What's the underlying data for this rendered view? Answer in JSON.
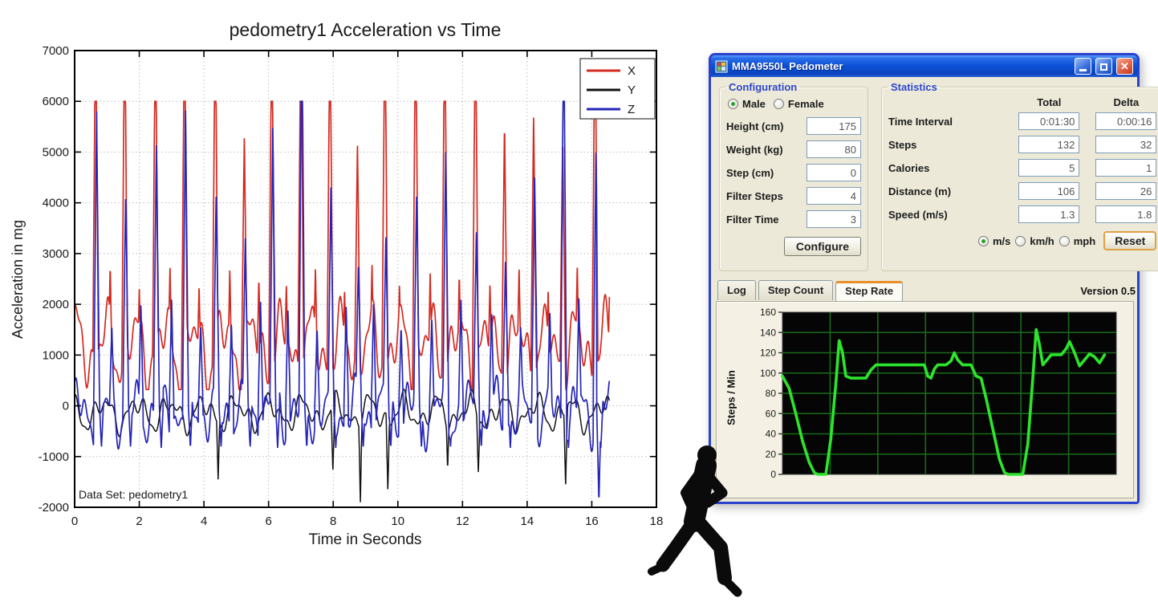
{
  "window": {
    "title": "MMA9550L Pedometer",
    "controls": {
      "minimize": "minimize",
      "maximize": "maximize",
      "close": "close"
    },
    "configuration": {
      "title": "Configuration",
      "gender_options": [
        {
          "label": "Male",
          "selected": true
        },
        {
          "label": "Female",
          "selected": false
        }
      ],
      "rows": [
        {
          "label": "Height (cm)",
          "value": "175"
        },
        {
          "label": "Weight (kg)",
          "value": "80"
        },
        {
          "label": "Step (cm)",
          "value": "0"
        },
        {
          "label": "Filter Steps",
          "value": "4"
        },
        {
          "label": "Filter Time",
          "value": "3"
        }
      ],
      "configure_label": "Configure"
    },
    "statistics": {
      "title": "Statistics",
      "col_total": "Total",
      "col_delta": "Delta",
      "rows": [
        {
          "label": "Time Interval",
          "total": "0:01:30",
          "delta": "0:00:16"
        },
        {
          "label": "Steps",
          "total": "132",
          "delta": "32"
        },
        {
          "label": "Calories",
          "total": "5",
          "delta": "1"
        },
        {
          "label": "Distance (m)",
          "total": "106",
          "delta": "26"
        },
        {
          "label": "Speed (m/s)",
          "total": "1.3",
          "delta": "1.8"
        }
      ],
      "unit_options": [
        {
          "label": "m/s",
          "selected": true
        },
        {
          "label": "km/h",
          "selected": false
        },
        {
          "label": "mph",
          "selected": false
        }
      ],
      "reset_label": "Reset"
    },
    "tabs": [
      {
        "label": "Log",
        "active": false
      },
      {
        "label": "Step Count",
        "active": false
      },
      {
        "label": "Step Rate",
        "active": true
      }
    ],
    "version": "Version 0.5"
  },
  "chart_data": [
    {
      "id": "acceleration",
      "type": "line",
      "title": "pedometry1 Acceleration vs Time",
      "xlabel": "Time in Seconds",
      "ylabel": "Acceleration in mg",
      "annotation": "Data Set: pedometry1",
      "xlim": [
        0,
        18
      ],
      "ylim": [
        -2000,
        7000
      ],
      "xtick_step": 2,
      "ytick_step": 1000,
      "grid": "dotted",
      "legend": {
        "position": "top-right",
        "entries": [
          {
            "name": "X",
            "color": "#d42a20"
          },
          {
            "name": "Y",
            "color": "#141414"
          },
          {
            "name": "Z",
            "color": "#2525b8"
          }
        ]
      },
      "duration_s": 16.55,
      "saturation_mg": 6000,
      "step_events": [
        {
          "t": 0.65,
          "x_peak": 6000,
          "z_peak": 5800,
          "y_dip": null,
          "z_dip": null
        },
        {
          "t": 1.55,
          "x_peak": 6000,
          "z_peak": 4250,
          "y_dip": null,
          "z_dip": null
        },
        {
          "t": 2.5,
          "x_peak": 6000,
          "z_peak": 5250,
          "y_dip": null,
          "z_dip": null
        },
        {
          "t": 3.4,
          "x_peak": 6000,
          "z_peak": 5950,
          "y_dip": null,
          "z_dip": null
        },
        {
          "t": 4.35,
          "x_peak": 6000,
          "z_peak": 4300,
          "y_dip": -1450,
          "z_dip": null
        },
        {
          "t": 5.25,
          "x_peak": 5380,
          "z_peak": 3300,
          "y_dip": null,
          "z_dip": null
        },
        {
          "t": 6.1,
          "x_peak": 6000,
          "z_peak": 5600,
          "y_dip": null,
          "z_dip": null
        },
        {
          "t": 7.0,
          "x_peak": 6000,
          "z_peak": 6000,
          "y_dip": null,
          "z_dip": null
        },
        {
          "t": 7.9,
          "x_peak": 6000,
          "z_peak": 4400,
          "y_dip": -1300,
          "z_dip": null
        },
        {
          "t": 8.75,
          "x_peak": 5230,
          "z_peak": 2850,
          "y_dip": -1900,
          "z_dip": null
        },
        {
          "t": 9.6,
          "x_peak": 6000,
          "z_peak": 3400,
          "y_dip": -1700,
          "z_dip": null
        },
        {
          "t": 10.55,
          "x_peak": 6000,
          "z_peak": 4300,
          "y_dip": null,
          "z_dip": null
        },
        {
          "t": 11.45,
          "x_peak": 6000,
          "z_peak": 5000,
          "y_dip": -1250,
          "z_dip": null
        },
        {
          "t": 12.4,
          "x_peak": 6000,
          "z_peak": 3500,
          "y_dip": -1350,
          "z_dip": null
        },
        {
          "t": 13.3,
          "x_peak": 5580,
          "z_peak": 2900,
          "y_dip": null,
          "z_dip": null
        },
        {
          "t": 14.2,
          "x_peak": 5680,
          "z_peak": 4600,
          "y_dip": null,
          "z_dip": null
        },
        {
          "t": 15.1,
          "x_peak": 5300,
          "z_peak": 6000,
          "y_dip": -1600,
          "z_dip": null
        },
        {
          "t": 16.1,
          "x_peak": 6000,
          "z_peak": 5100,
          "y_dip": null,
          "z_dip": -1900
        }
      ],
      "baselines": {
        "x": {
          "offset": 1150,
          "min": 320,
          "waves": [
            [
              520,
              6.9,
              1.2
            ],
            [
              330,
              13.1,
              0.4
            ],
            [
              210,
              23.7,
              2.1
            ]
          ]
        },
        "y": {
          "offset": -140,
          "waves": [
            [
              230,
              6.1,
              2.4
            ],
            [
              150,
              11.8,
              0.9
            ],
            [
              90,
              21.0,
              1.1
            ]
          ]
        },
        "z": {
          "offset": -120,
          "waves": [
            [
              380,
              7.3,
              0.8
            ],
            [
              260,
              15.9,
              1.7
            ],
            [
              150,
              27.0,
              0.2
            ]
          ]
        }
      },
      "secondary_spikes": {
        "x": {
          "dt": 0.45,
          "base": 2550,
          "var": 250,
          "freq": 3
        },
        "z": {
          "dt": 0.5,
          "base": 1850,
          "var": 300,
          "freq": 5
        },
        "z_post_dip": {
          "dt": 0.18,
          "depth": -830,
          "width": 0.06
        }
      }
    },
    {
      "id": "step-rate",
      "type": "line",
      "ylabel": "Steps / Min",
      "ylim": [
        0,
        160
      ],
      "ytick_step": 20,
      "line_color": "#2ce52c",
      "bg_color": "#050505",
      "grid_color": "#1a6b1a",
      "v_gridlines": 6,
      "points": [
        [
          0,
          97
        ],
        [
          2,
          85
        ],
        [
          4,
          60
        ],
        [
          6,
          33
        ],
        [
          8,
          12
        ],
        [
          9.5,
          2
        ],
        [
          10.5,
          0
        ],
        [
          13,
          0
        ],
        [
          14.5,
          35
        ],
        [
          16,
          90
        ],
        [
          17,
          132
        ],
        [
          18,
          120
        ],
        [
          19,
          97
        ],
        [
          20.5,
          95
        ],
        [
          25,
          95
        ],
        [
          26.5,
          103
        ],
        [
          28,
          108
        ],
        [
          42.5,
          108
        ],
        [
          43.5,
          97
        ],
        [
          44.5,
          95
        ],
        [
          45.5,
          104
        ],
        [
          46.5,
          108
        ],
        [
          49,
          108
        ],
        [
          50.5,
          112
        ],
        [
          51.5,
          120
        ],
        [
          52.5,
          113
        ],
        [
          54,
          108
        ],
        [
          56.5,
          108
        ],
        [
          58,
          97
        ],
        [
          59.5,
          95
        ],
        [
          61,
          75
        ],
        [
          63,
          45
        ],
        [
          65,
          15
        ],
        [
          66.5,
          2
        ],
        [
          67.5,
          0
        ],
        [
          72,
          0
        ],
        [
          73.5,
          30
        ],
        [
          75,
          95
        ],
        [
          76,
          143
        ],
        [
          77,
          128
        ],
        [
          78,
          108
        ],
        [
          79.5,
          114
        ],
        [
          80.5,
          118
        ],
        [
          83.5,
          118
        ],
        [
          85,
          124
        ],
        [
          86,
          131
        ],
        [
          87.5,
          120
        ],
        [
          89,
          107
        ],
        [
          90.5,
          113
        ],
        [
          92,
          119
        ],
        [
          93.5,
          116
        ],
        [
          95,
          110
        ],
        [
          96.5,
          118
        ]
      ]
    }
  ]
}
